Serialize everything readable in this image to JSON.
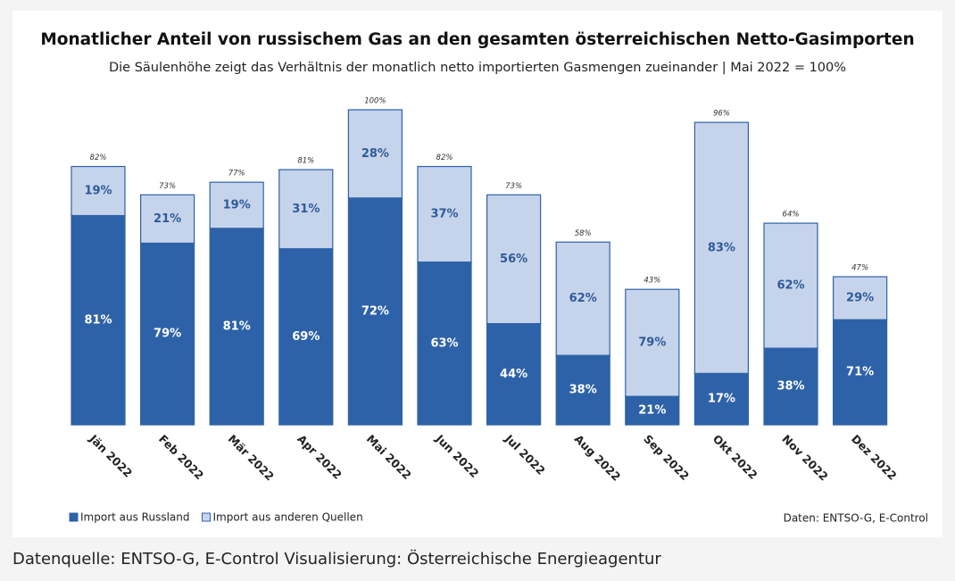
{
  "chart_data": {
    "type": "stacked_share_bar",
    "title": "Monatlicher Anteil von russischem Gas an den gesamten österreichischen Netto-Gasimporten",
    "subtitle": "Die Säulenhöhe zeigt das Verhältnis der monatlich netto importierten Gasmengen zueinander | Mai 2022 = 100%",
    "categories": [
      "Jän 2022",
      "Feb 2022",
      "Mär 2022",
      "Apr 2022",
      "Mai 2022",
      "Jun 2022",
      "Jul 2022",
      "Aug 2022",
      "Sep 2022",
      "Okt 2022",
      "Nov 2022",
      "Dez 2022"
    ],
    "totals": {
      "values": [
        82,
        73,
        77,
        81,
        100,
        82,
        73,
        58,
        43,
        96,
        64,
        47
      ],
      "value_labels": [
        "82%",
        "73%",
        "77%",
        "81%",
        "100%",
        "82%",
        "73%",
        "58%",
        "43%",
        "96%",
        "64%",
        "47%"
      ]
    },
    "series": [
      {
        "name": "Import aus Russland",
        "color": "#2e62a8",
        "values": [
          81,
          79,
          81,
          69,
          72,
          63,
          44,
          38,
          21,
          17,
          38,
          71
        ],
        "value_labels": [
          "81%",
          "79%",
          "81%",
          "69%",
          "72%",
          "63%",
          "44%",
          "38%",
          "21%",
          "17%",
          "38%",
          "71%"
        ]
      },
      {
        "name": "Import aus anderen Quellen",
        "color": "#c6d4eb",
        "values": [
          19,
          21,
          19,
          31,
          28,
          37,
          56,
          62,
          79,
          83,
          62,
          29
        ],
        "value_labels": [
          "19%",
          "21%",
          "19%",
          "31%",
          "28%",
          "37%",
          "56%",
          "62%",
          "79%",
          "83%",
          "62%",
          "29%"
        ]
      }
    ],
    "source": "Daten: ENTSO-G, E-Control"
  },
  "caption": "Datenquelle: ENTSO-G, E-Control Visualisierung: Österreichische Energieagentur"
}
